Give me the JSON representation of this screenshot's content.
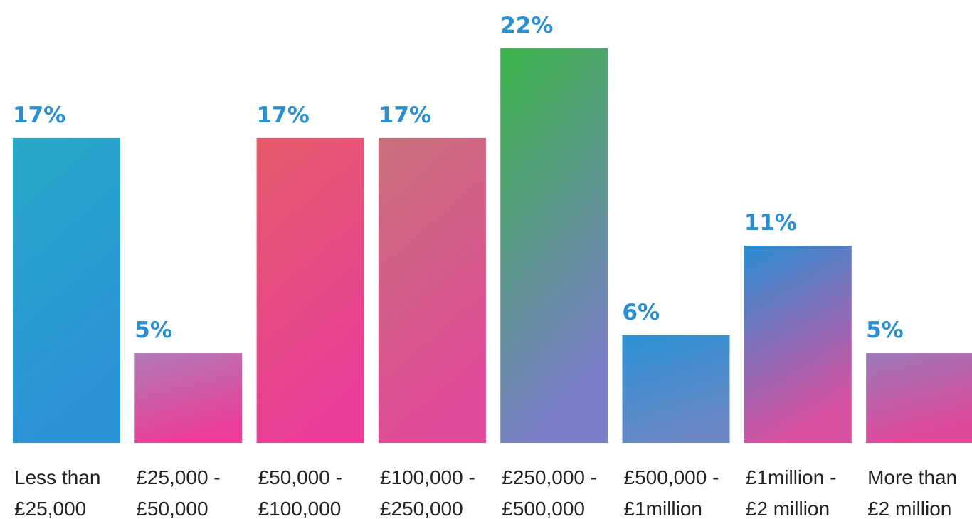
{
  "chart_data": {
    "type": "bar",
    "categories": [
      [
        "Less than",
        "£25,000"
      ],
      [
        "£25,000 -",
        "£50,000"
      ],
      [
        "£50,000 -",
        "£100,000"
      ],
      [
        "£100,000 -",
        "£250,000"
      ],
      [
        "£250,000 -",
        "£500,000"
      ],
      [
        "£500,000 -",
        "£1million"
      ],
      [
        "£1million -",
        "£2 million"
      ],
      [
        "More than",
        "£2 million"
      ]
    ],
    "values": [
      17,
      5,
      17,
      17,
      22,
      6,
      11,
      5
    ],
    "value_labels": [
      "17%",
      "5%",
      "17%",
      "17%",
      "22%",
      "6%",
      "11%",
      "5%"
    ],
    "colors": [
      [
        "#27a8c8",
        "#2a92d6"
      ],
      [
        "#b07ab8",
        "#ea3e98"
      ],
      [
        "#e85a6a",
        "#e83e98"
      ],
      [
        "#c8707a",
        "#e04a98"
      ],
      [
        "#3ab448",
        "#7a7ec8"
      ],
      [
        "#2a90d2",
        "#6a88c8"
      ],
      [
        "#2a8ed2",
        "#d850a0"
      ],
      [
        "#9a78b8",
        "#e0489a"
      ]
    ],
    "label_color": "#2a8fd0"
  }
}
